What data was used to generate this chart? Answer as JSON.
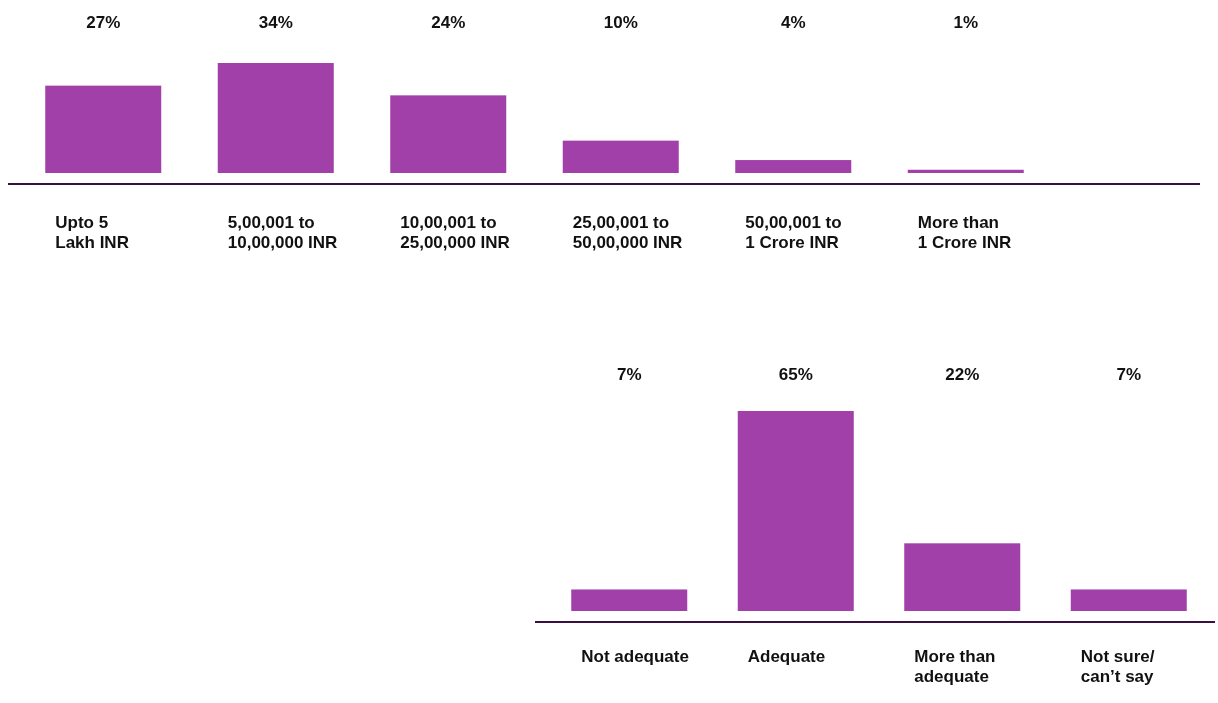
{
  "chart_data": [
    {
      "type": "bar",
      "categories": [
        "Upto 5\nLakh INR",
        "5,00,001 to\n10,00,000 INR",
        "10,00,001 to\n25,00,000 INR",
        "25,00,001 to\n50,00,000 INR",
        "50,00,001 to\n1 Crore INR",
        "More than\n1 Crore INR"
      ],
      "values": [
        27,
        34,
        24,
        10,
        4,
        1
      ],
      "color": "#a040a8",
      "data_labels": true,
      "value_labels": [
        "27%",
        "34%",
        "24%",
        "10%",
        "4%",
        "1%"
      ]
    },
    {
      "type": "bar",
      "categories": [
        "Not adequate",
        "Adequate",
        "More than\nadequate",
        "Not sure/\ncan’t say"
      ],
      "values": [
        7,
        65,
        22,
        7
      ],
      "color": "#a040a8",
      "data_labels": true,
      "value_labels": [
        "7%",
        "65%",
        "22%",
        "7%"
      ]
    }
  ]
}
